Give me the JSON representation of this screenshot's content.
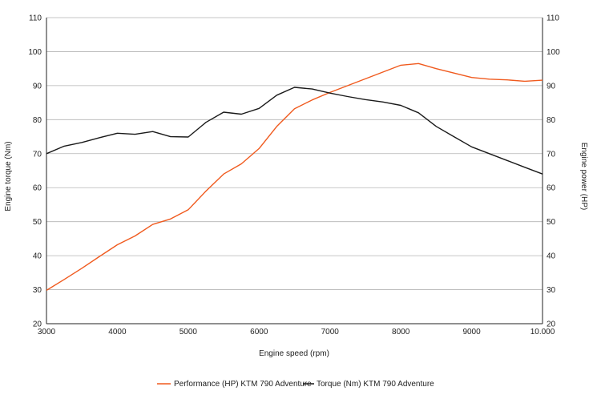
{
  "chart_data": {
    "type": "line",
    "title": "",
    "xlabel": "Engine speed (rpm)",
    "ylabel_left": "Engine torque (Nm)",
    "ylabel_right": "Engine power (HP)",
    "xlim": [
      3000,
      10000
    ],
    "ylim": [
      20,
      110
    ],
    "grid": true,
    "legend_position": "bottom",
    "x_ticks": [
      3000,
      4000,
      5000,
      6000,
      7000,
      8000,
      9000,
      10000
    ],
    "x_tick_labels": [
      "3000",
      "4000",
      "5000",
      "6000",
      "7000",
      "8000",
      "9000",
      "10.000"
    ],
    "y_ticks": [
      20,
      30,
      40,
      50,
      60,
      70,
      80,
      90,
      100,
      110
    ],
    "y_tick_labels": [
      "20",
      "30",
      "40",
      "50",
      "60",
      "70",
      "80",
      "90",
      "100",
      "110"
    ],
    "series": [
      {
        "name": "Performance (HP) KTM 790 Adventure",
        "color": "#f05a1e",
        "points": [
          [
            3000,
            29.8
          ],
          [
            3250,
            33.0
          ],
          [
            3500,
            36.3
          ],
          [
            3750,
            39.8
          ],
          [
            4000,
            43.2
          ],
          [
            4250,
            45.8
          ],
          [
            4500,
            49.2
          ],
          [
            4750,
            50.8
          ],
          [
            5000,
            53.5
          ],
          [
            5250,
            59.0
          ],
          [
            5500,
            64.0
          ],
          [
            5750,
            67.0
          ],
          [
            6000,
            71.5
          ],
          [
            6250,
            78.0
          ],
          [
            6500,
            83.2
          ],
          [
            6750,
            85.8
          ],
          [
            7000,
            88.0
          ],
          [
            7250,
            90.0
          ],
          [
            7500,
            92.0
          ],
          [
            7750,
            94.0
          ],
          [
            8000,
            96.0
          ],
          [
            8250,
            96.5
          ],
          [
            8500,
            95.0
          ],
          [
            8750,
            93.7
          ],
          [
            9000,
            92.4
          ],
          [
            9250,
            91.9
          ],
          [
            9500,
            91.7
          ],
          [
            9750,
            91.3
          ],
          [
            10000,
            91.6
          ]
        ]
      },
      {
        "name": "Torque (Nm) KTM 790 Adventure",
        "color": "#1a1a1a",
        "points": [
          [
            3000,
            70.0
          ],
          [
            3250,
            72.2
          ],
          [
            3500,
            73.3
          ],
          [
            3750,
            74.7
          ],
          [
            4000,
            76.0
          ],
          [
            4250,
            75.7
          ],
          [
            4500,
            76.5
          ],
          [
            4750,
            75.0
          ],
          [
            5000,
            74.9
          ],
          [
            5250,
            79.2
          ],
          [
            5500,
            82.2
          ],
          [
            5750,
            81.6
          ],
          [
            6000,
            83.3
          ],
          [
            6250,
            87.2
          ],
          [
            6500,
            89.5
          ],
          [
            6750,
            89.0
          ],
          [
            7000,
            87.8
          ],
          [
            7250,
            86.8
          ],
          [
            7500,
            85.9
          ],
          [
            7750,
            85.2
          ],
          [
            8000,
            84.2
          ],
          [
            8250,
            82.0
          ],
          [
            8500,
            78.0
          ],
          [
            8750,
            75.0
          ],
          [
            9000,
            72.0
          ],
          [
            9250,
            70.0
          ],
          [
            9500,
            68.0
          ],
          [
            9750,
            66.0
          ],
          [
            10000,
            64.0
          ]
        ]
      }
    ]
  }
}
